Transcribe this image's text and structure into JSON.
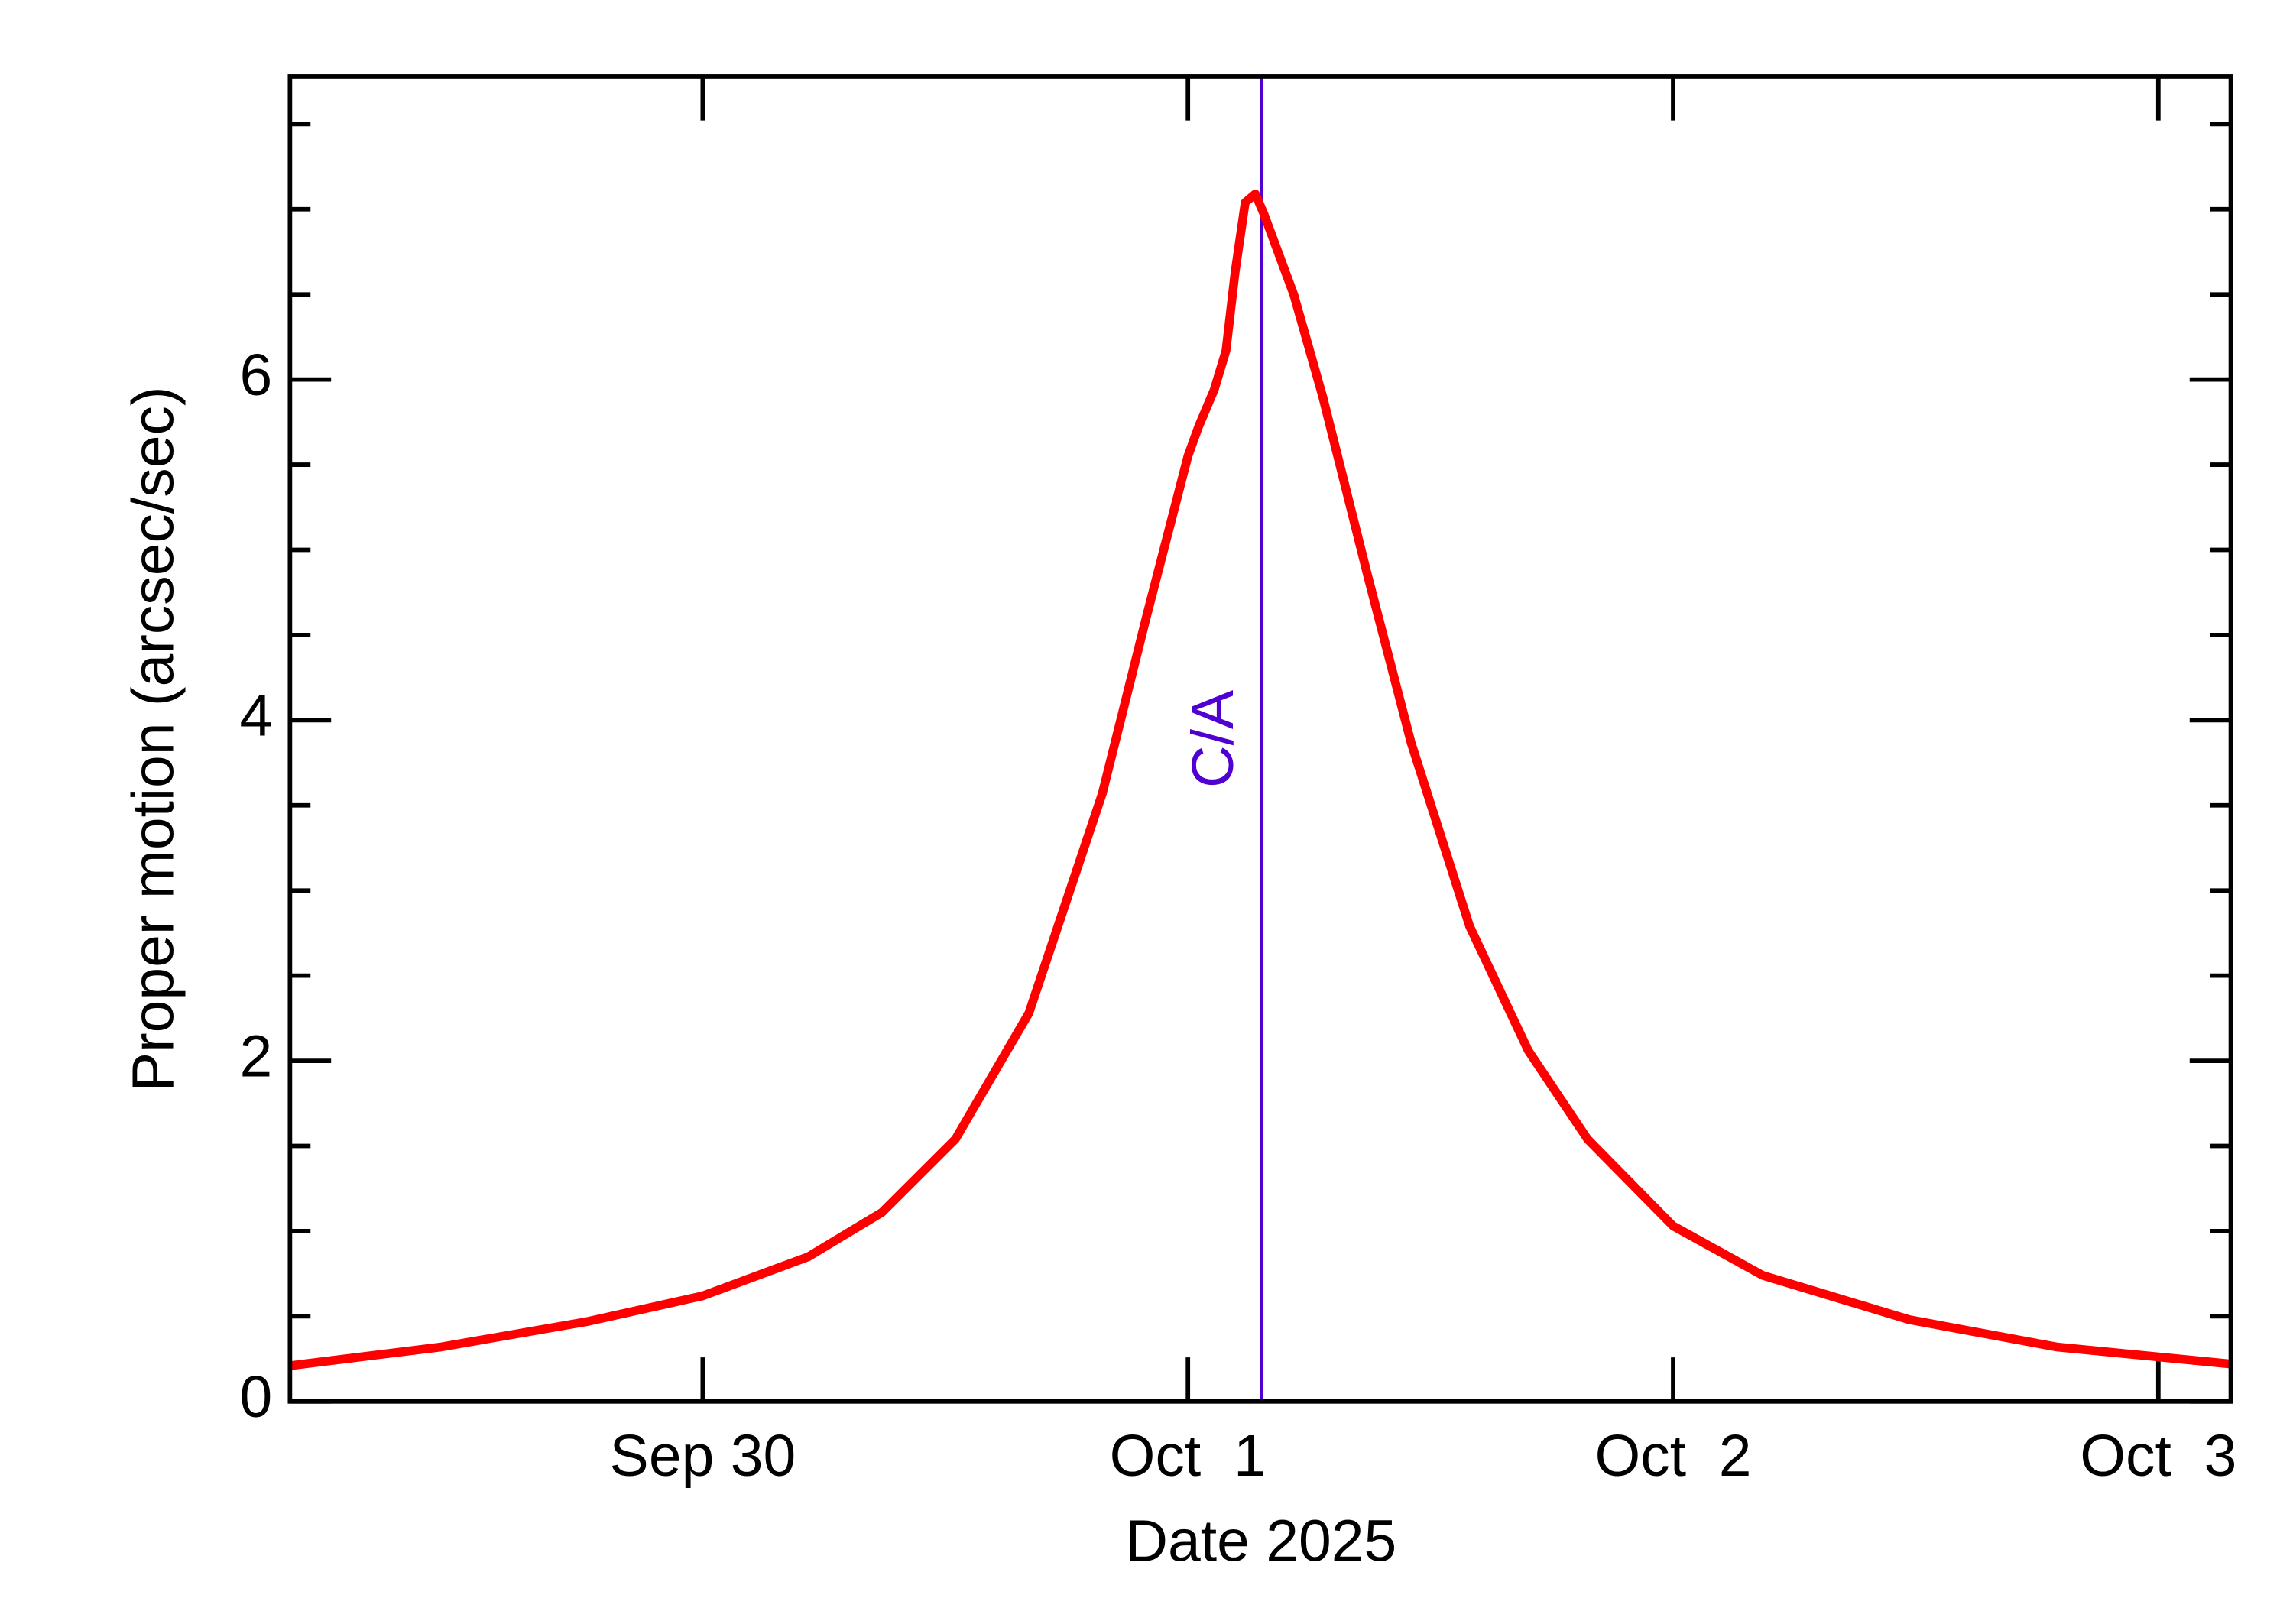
{
  "chart_data": {
    "type": "line",
    "xlabel": "Date 2025",
    "ylabel": "Proper motion (arcsec/sec)",
    "x": [
      "2025-09-29T03:35",
      "2025-09-29T11:04",
      "2025-09-29T18:20",
      "2025-09-30T00:00",
      "2025-09-30T05:14",
      "2025-09-30T08:52",
      "2025-09-30T12:30",
      "2025-09-30T16:08",
      "2025-09-30T19:46",
      "2025-09-30T21:56",
      "2025-10-01T00:00",
      "2025-10-01T00:31",
      "2025-10-01T01:18",
      "2025-10-01T01:53",
      "2025-10-01T02:20",
      "2025-10-01T02:50",
      "2025-10-01T03:20",
      "2025-10-01T03:46",
      "2025-10-01T05:14",
      "2025-10-01T06:40",
      "2025-10-01T08:52",
      "2025-10-01T11:02",
      "2025-10-01T13:56",
      "2025-10-01T16:50",
      "2025-10-01T19:46",
      "2025-10-02T00:00",
      "2025-10-02T04:26",
      "2025-10-02T11:41",
      "2025-10-02T18:58",
      "2025-10-03T03:35"
    ],
    "series": [
      {
        "color": "#ff0000",
        "values": [
          0.21,
          0.32,
          0.47,
          0.62,
          0.85,
          1.11,
          1.54,
          2.28,
          3.57,
          4.6,
          5.55,
          5.72,
          5.94,
          6.17,
          6.63,
          7.04,
          7.09,
          6.97,
          6.5,
          5.9,
          4.86,
          3.87,
          2.79,
          2.06,
          1.54,
          1.03,
          0.74,
          0.48,
          0.32,
          0.22
        ]
      }
    ],
    "annotations": [
      {
        "x": "2025-10-01T03:38",
        "text": "C/A",
        "color": "#5000d0"
      }
    ],
    "xlim": [
      "2025-09-29T03:35",
      "2025-10-03T03:35"
    ],
    "xticks": [
      {
        "value": "2025-09-30T00:00",
        "label": "Sep 30"
      },
      {
        "value": "2025-10-01T00:00",
        "label": "Oct  1"
      },
      {
        "value": "2025-10-02T00:00",
        "label": "Oct  2"
      },
      {
        "value": "2025-10-03T00:00",
        "label": "Oct  3"
      }
    ],
    "ylim": [
      0,
      7.78
    ],
    "yticks": [
      0,
      2,
      4,
      6
    ],
    "yticks_minor": [
      0.5,
      1,
      1.5,
      2.5,
      3,
      3.5,
      4.5,
      5,
      5.5,
      6.5,
      7,
      7.5
    ]
  }
}
